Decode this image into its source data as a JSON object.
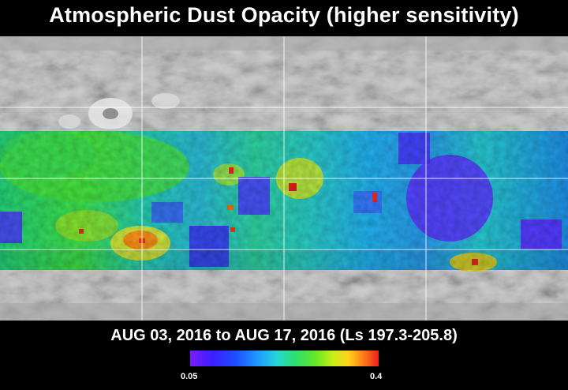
{
  "title": "Atmospheric Dust Opacity (higher sensitivity)",
  "date_range": "AUG 03, 2016 to AUG 17, 2016 (Ls 197.3-205.8)",
  "colorbar": {
    "min_label": "0.05",
    "max_label": "0.4",
    "min_value": 0.05,
    "max_value": 0.4,
    "colors": [
      "#7a1cff",
      "#1f4cff",
      "#25d6d6",
      "#62e62a",
      "#ffd21a",
      "#e8201e"
    ]
  },
  "map": {
    "basemap": "grey shaded relief",
    "grid": true,
    "data_band_coverage": "equatorial band only"
  }
}
